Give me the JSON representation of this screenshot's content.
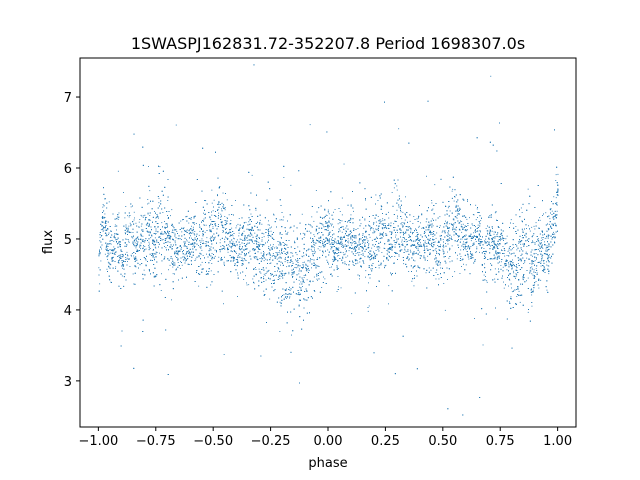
{
  "chart_data": {
    "type": "scatter",
    "title": "1SWASPJ162831.72-352207.8 Period 1698307.0s",
    "xlabel": "phase",
    "ylabel": "flux",
    "xlim": [
      -1.08,
      1.08
    ],
    "ylim": [
      2.35,
      7.55
    ],
    "xticks": [
      -1.0,
      -0.75,
      -0.5,
      -0.25,
      0.0,
      0.25,
      0.5,
      0.75,
      1.0
    ],
    "xtick_labels": [
      "−1.00",
      "−0.75",
      "−0.50",
      "−0.25",
      "0.00",
      "0.25",
      "0.50",
      "0.75",
      "1.00"
    ],
    "yticks": [
      3,
      4,
      5,
      6,
      7
    ],
    "ytick_labels": [
      "3",
      "4",
      "5",
      "6",
      "7"
    ],
    "grid": false,
    "marker_color": "#1f77b4",
    "series": [
      {
        "x": [
          -1.0,
          -0.98,
          -0.96,
          -0.94,
          -0.92,
          -0.9,
          -0.88,
          -0.86,
          -0.84,
          -0.82,
          -0.8,
          -0.78,
          -0.76,
          -0.74,
          -0.72,
          -0.7,
          -0.68,
          -0.66,
          -0.64,
          -0.62,
          -0.6,
          -0.58,
          -0.56,
          -0.54,
          -0.52,
          -0.5,
          -0.48,
          -0.46,
          -0.44,
          -0.42,
          -0.4,
          -0.38,
          -0.36,
          -0.34,
          -0.32,
          -0.3,
          -0.28,
          -0.26,
          -0.24,
          -0.22,
          -0.2,
          -0.18,
          -0.16,
          -0.14,
          -0.12,
          -0.1,
          -0.08,
          -0.06,
          -0.04,
          -0.02,
          0.0,
          0.02,
          0.04,
          0.06,
          0.08,
          0.1,
          0.12,
          0.14,
          0.16,
          0.18,
          0.2,
          0.22,
          0.24,
          0.26,
          0.28,
          0.3,
          0.32,
          0.34,
          0.36,
          0.38,
          0.4,
          0.42,
          0.44,
          0.46,
          0.48,
          0.5,
          0.52,
          0.54,
          0.56,
          0.58,
          0.6,
          0.62,
          0.64,
          0.66,
          0.68,
          0.7,
          0.72,
          0.74,
          0.76,
          0.78,
          0.8,
          0.82,
          0.84,
          0.86,
          0.88,
          0.9,
          0.92,
          0.94,
          0.96,
          0.98,
          1.0
        ],
        "y": [
          4.6,
          5.4,
          4.9,
          4.8,
          5.0,
          4.7,
          4.9,
          5.1,
          4.8,
          5.0,
          4.9,
          5.2,
          4.8,
          5.3,
          5.0,
          5.1,
          4.9,
          4.8,
          5.0,
          4.9,
          5.1,
          5.0,
          4.8,
          5.2,
          4.9,
          5.0,
          5.3,
          5.1,
          5.0,
          4.9,
          4.8,
          5.0,
          4.9,
          5.1,
          4.8,
          4.9,
          4.7,
          4.9,
          4.8,
          4.6,
          4.8,
          4.7,
          4.5,
          4.6,
          4.4,
          4.6,
          4.7,
          4.8,
          4.9,
          5.0,
          5.2,
          4.9,
          4.8,
          5.0,
          4.9,
          5.1,
          4.8,
          4.9,
          5.0,
          4.8,
          5.0,
          4.9,
          5.1,
          5.0,
          4.9,
          5.3,
          5.1,
          5.0,
          4.9,
          4.8,
          5.0,
          4.9,
          5.1,
          5.0,
          4.8,
          5.0,
          5.1,
          5.2,
          5.3,
          5.1,
          5.0,
          4.9,
          5.1,
          5.0,
          4.8,
          5.0,
          4.9,
          4.8,
          4.9,
          4.7,
          4.8,
          4.6,
          4.7,
          4.8,
          4.6,
          4.7,
          4.9,
          4.8,
          4.9,
          5.1,
          5.7
        ],
        "spread": [
          0.35,
          0.3,
          0.35,
          0.3,
          0.35,
          0.35,
          0.4,
          0.45,
          0.4,
          0.4,
          0.45,
          0.5,
          0.45,
          0.55,
          0.5,
          0.45,
          0.4,
          0.35,
          0.35,
          0.35,
          0.4,
          0.35,
          0.35,
          0.4,
          0.45,
          0.45,
          0.5,
          0.45,
          0.4,
          0.35,
          0.35,
          0.35,
          0.4,
          0.45,
          0.4,
          0.45,
          0.45,
          0.5,
          0.45,
          0.5,
          0.55,
          0.55,
          0.6,
          0.55,
          0.6,
          0.55,
          0.5,
          0.45,
          0.4,
          0.4,
          0.45,
          0.4,
          0.35,
          0.35,
          0.35,
          0.4,
          0.35,
          0.35,
          0.4,
          0.45,
          0.45,
          0.4,
          0.45,
          0.45,
          0.45,
          0.5,
          0.45,
          0.4,
          0.35,
          0.35,
          0.35,
          0.4,
          0.35,
          0.35,
          0.35,
          0.4,
          0.4,
          0.45,
          0.45,
          0.45,
          0.4,
          0.35,
          0.35,
          0.35,
          0.35,
          0.4,
          0.35,
          0.35,
          0.4,
          0.45,
          0.5,
          0.55,
          0.5,
          0.5,
          0.55,
          0.5,
          0.45,
          0.45,
          0.4,
          0.35,
          0.3
        ]
      }
    ]
  }
}
